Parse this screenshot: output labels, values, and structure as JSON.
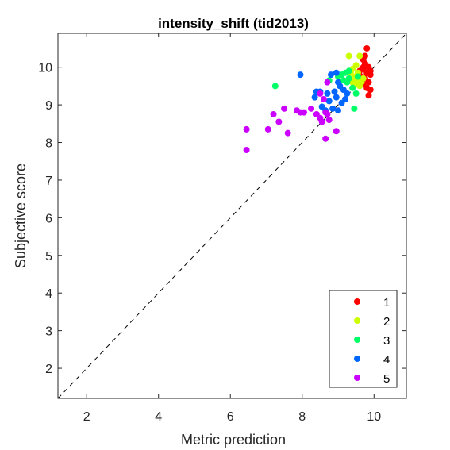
{
  "chart_data": {
    "type": "scatter",
    "title": "intensity_shift (tid2013)",
    "xlabel": "Metric prediction",
    "ylabel": "Subjective score",
    "xlim": [
      1.2,
      10.9
    ],
    "ylim": [
      1.2,
      10.9
    ],
    "xticks": [
      2,
      4,
      6,
      8,
      10
    ],
    "yticks": [
      2,
      3,
      4,
      5,
      6,
      7,
      8,
      9,
      10
    ],
    "grid": false,
    "legend_position": "bottom-right",
    "reference_line": "identity (dashed)",
    "series": [
      {
        "name": "1",
        "color": "#ff0000",
        "points": [
          [
            9.8,
            10.5
          ],
          [
            9.75,
            10.3
          ],
          [
            9.7,
            10.2
          ],
          [
            9.85,
            10.0
          ],
          [
            9.7,
            9.95
          ],
          [
            9.8,
            9.85
          ],
          [
            9.9,
            9.8
          ],
          [
            9.65,
            9.75
          ],
          [
            9.75,
            9.7
          ],
          [
            9.85,
            9.6
          ],
          [
            9.7,
            9.55
          ],
          [
            9.8,
            9.45
          ],
          [
            9.9,
            9.4
          ],
          [
            9.85,
            9.25
          ],
          [
            9.75,
            10.1
          ],
          [
            9.6,
            9.9
          ],
          [
            9.7,
            10.0
          ],
          [
            9.9,
            9.9
          ]
        ]
      },
      {
        "name": "2",
        "color": "#ccff00",
        "points": [
          [
            9.3,
            10.3
          ],
          [
            9.6,
            10.3
          ],
          [
            9.5,
            10.05
          ],
          [
            9.4,
            9.95
          ],
          [
            9.55,
            9.85
          ],
          [
            9.45,
            9.75
          ],
          [
            9.55,
            9.65
          ],
          [
            9.65,
            9.6
          ],
          [
            9.5,
            9.55
          ],
          [
            9.6,
            9.5
          ],
          [
            9.4,
            9.6
          ],
          [
            9.7,
            9.7
          ],
          [
            9.35,
            9.85
          ]
        ]
      },
      {
        "name": "3",
        "color": "#00ff66",
        "points": [
          [
            7.25,
            9.5
          ],
          [
            8.75,
            9.65
          ],
          [
            9.0,
            9.75
          ],
          [
            9.1,
            9.8
          ],
          [
            9.2,
            9.85
          ],
          [
            9.3,
            9.7
          ],
          [
            9.25,
            9.6
          ],
          [
            9.4,
            9.45
          ],
          [
            9.5,
            9.3
          ],
          [
            9.45,
            8.9
          ],
          [
            9.3,
            9.9
          ],
          [
            9.55,
            9.75
          ],
          [
            9.15,
            9.65
          ]
        ]
      },
      {
        "name": "4",
        "color": "#0066ff",
        "points": [
          [
            7.95,
            9.8
          ],
          [
            8.8,
            9.8
          ],
          [
            8.95,
            9.85
          ],
          [
            9.0,
            9.6
          ],
          [
            9.05,
            9.5
          ],
          [
            8.9,
            9.35
          ],
          [
            9.15,
            9.4
          ],
          [
            9.25,
            9.3
          ],
          [
            8.7,
            9.3
          ],
          [
            8.5,
            9.35
          ],
          [
            8.4,
            9.35
          ],
          [
            8.35,
            9.2
          ],
          [
            8.75,
            9.1
          ],
          [
            8.95,
            9.2
          ],
          [
            9.1,
            9.05
          ],
          [
            8.55,
            8.95
          ],
          [
            8.85,
            8.9
          ],
          [
            9.0,
            8.85
          ],
          [
            8.65,
            8.85
          ],
          [
            9.2,
            9.15
          ]
        ]
      },
      {
        "name": "5",
        "color": "#cc00ff",
        "points": [
          [
            6.45,
            8.35
          ],
          [
            6.45,
            7.8
          ],
          [
            7.05,
            8.35
          ],
          [
            7.35,
            8.55
          ],
          [
            7.2,
            8.75
          ],
          [
            7.6,
            8.25
          ],
          [
            7.5,
            8.9
          ],
          [
            7.95,
            8.8
          ],
          [
            7.85,
            8.85
          ],
          [
            8.05,
            8.8
          ],
          [
            8.25,
            8.9
          ],
          [
            8.4,
            8.75
          ],
          [
            8.5,
            8.65
          ],
          [
            8.55,
            8.55
          ],
          [
            8.65,
            8.8
          ],
          [
            8.7,
            8.75
          ],
          [
            8.75,
            8.6
          ],
          [
            8.65,
            8.1
          ],
          [
            8.95,
            8.3
          ],
          [
            8.7,
            9.6
          ],
          [
            8.5,
            9.3
          ],
          [
            8.6,
            9.15
          ]
        ]
      }
    ]
  }
}
